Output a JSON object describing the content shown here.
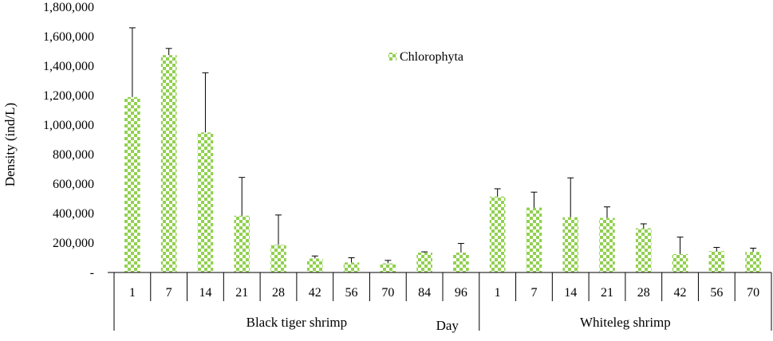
{
  "chart_data": {
    "type": "bar",
    "title": "",
    "xlabel": "Day",
    "ylabel": "Density (ind/L)",
    "ylim": [
      0,
      1800000
    ],
    "yticks": [
      0,
      200000,
      400000,
      600000,
      800000,
      1000000,
      1200000,
      1400000,
      1600000,
      1800000
    ],
    "ytick_labels": [
      "-",
      "200,000",
      "400,000",
      "600,000",
      "800,000",
      "1,000,000",
      "1,200,000",
      "1,400,000",
      "1,600,000",
      "1,800,000"
    ],
    "grid": false,
    "legend_position": "top-center",
    "series": [
      {
        "name": "Chlorophyta",
        "color": "#92d050",
        "pattern": "checkerboard"
      }
    ],
    "groups": [
      {
        "label": "Black tiger shrimp",
        "categories": [
          "1",
          "7",
          "14",
          "21",
          "28",
          "42",
          "56",
          "70",
          "84",
          "96"
        ],
        "values": [
          1190000,
          1475000,
          950000,
          385000,
          188000,
          95000,
          68000,
          62000,
          135000,
          135000
        ],
        "error_upper": [
          1660000,
          1520000,
          1355000,
          645000,
          390000,
          112000,
          100000,
          82000,
          140000,
          197000
        ]
      },
      {
        "label": "Whiteleg shrimp",
        "categories": [
          "1",
          "7",
          "14",
          "21",
          "28",
          "42",
          "56",
          "70"
        ],
        "values": [
          515000,
          440000,
          375000,
          370000,
          300000,
          125000,
          145000,
          140000
        ],
        "error_upper": [
          568000,
          545000,
          642000,
          445000,
          330000,
          240000,
          170000,
          165000
        ]
      }
    ]
  }
}
